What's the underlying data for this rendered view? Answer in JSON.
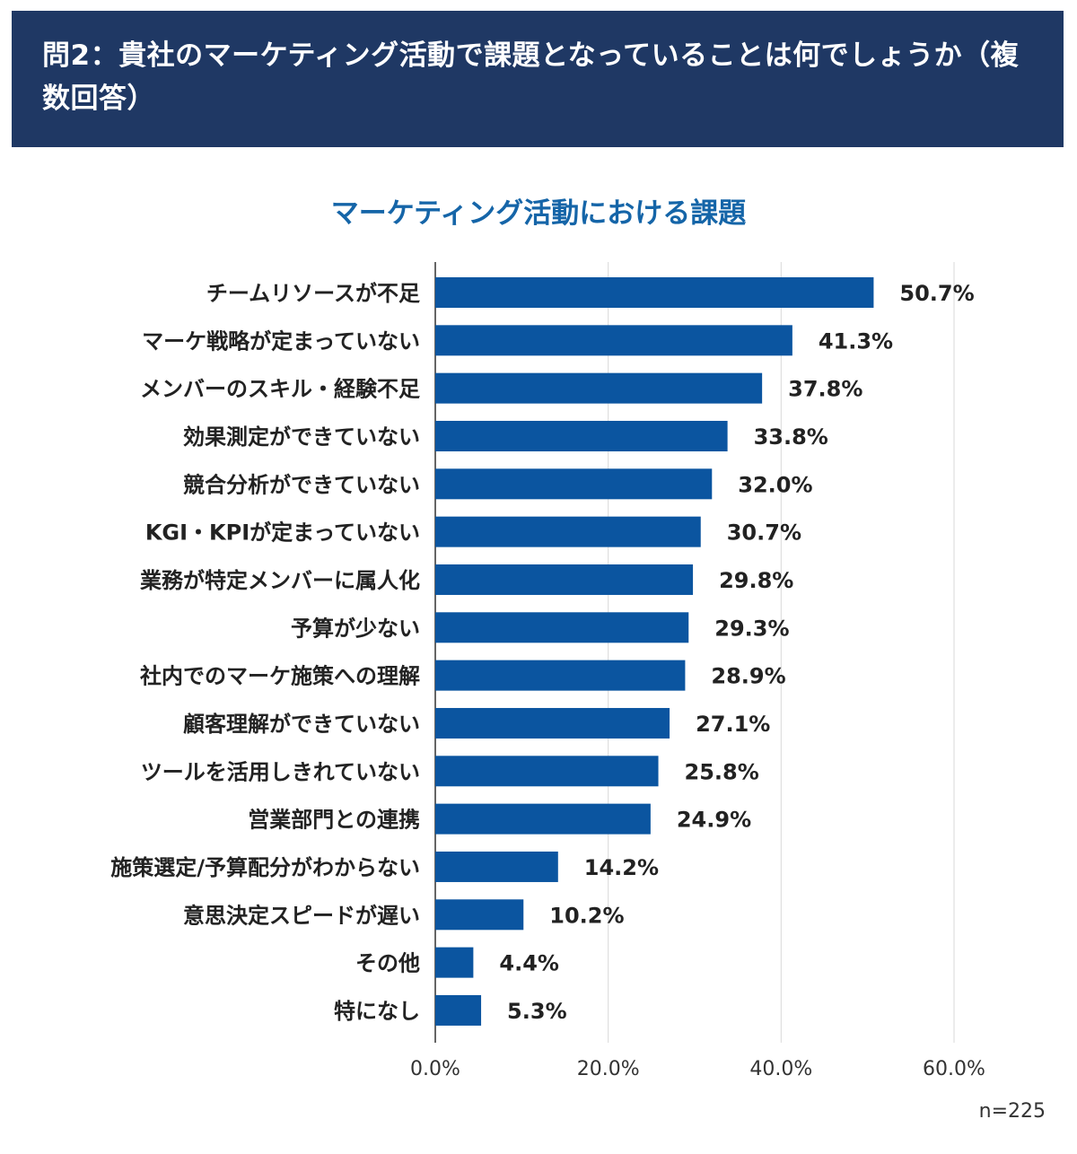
{
  "header": {
    "title": "問2：貴社のマーケティング活動で課題となっていることは何でしょうか（複数回答）"
  },
  "colors": {
    "header_bg": "#1f3864",
    "bar": "#0b55a0",
    "chart_title": "#1565a8",
    "grid": "#d9d9d9"
  },
  "chart_data": {
    "type": "bar",
    "orientation": "horizontal",
    "title": "マーケティング活動における課題",
    "categories": [
      "チームリソースが不足",
      "マーケ戦略が定まっていない",
      "メンバーのスキル・経験不足",
      "効果測定ができていない",
      "競合分析ができていない",
      "KGI・KPIが定まっていない",
      "業務が特定メンバーに属人化",
      "予算が少ない",
      "社内でのマーケ施策への理解",
      "顧客理解ができていない",
      "ツールを活用しきれていない",
      "営業部門との連携",
      "施策選定/予算配分がわからない",
      "意思決定スピードが遅い",
      "その他",
      "特になし"
    ],
    "values": [
      50.7,
      41.3,
      37.8,
      33.8,
      32.0,
      30.7,
      29.8,
      29.3,
      28.9,
      27.1,
      25.8,
      24.9,
      14.2,
      10.2,
      4.4,
      5.3
    ],
    "value_labels": [
      "50.7%",
      "41.3%",
      "37.8%",
      "33.8%",
      "32.0%",
      "30.7%",
      "29.8%",
      "29.3%",
      "28.9%",
      "27.1%",
      "25.8%",
      "24.9%",
      "14.2%",
      "10.2%",
      "4.4%",
      "5.3%"
    ],
    "xlim": [
      0,
      60
    ],
    "xticks": [
      0,
      20,
      40,
      60
    ],
    "xtick_labels": [
      "0.0%",
      "20.0%",
      "40.0%",
      "60.0%"
    ],
    "grid": true,
    "note": "n=225"
  }
}
